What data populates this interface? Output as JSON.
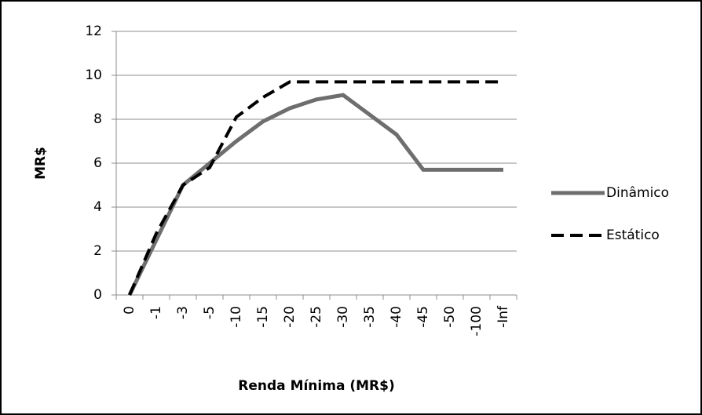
{
  "chart_data": {
    "type": "line",
    "x_label": "Renda Mínima (MR$)",
    "y_label": "MR$",
    "categories": [
      "0",
      "-1",
      "-3",
      "-5",
      "-10",
      "-15",
      "-20",
      "-25",
      "-30",
      "-35",
      "-40",
      "-45",
      "-50",
      "-100",
      "-Inf"
    ],
    "series": [
      {
        "name": "Dinâmico",
        "color": "#6e6e6e",
        "dashed": false,
        "values": [
          0,
          2.5,
          5.0,
          6.0,
          7.0,
          7.9,
          8.5,
          8.9,
          9.1,
          8.2,
          7.3,
          5.7,
          5.7,
          5.7,
          5.7
        ]
      },
      {
        "name": "Estático",
        "color": "#000000",
        "dashed": true,
        "values": [
          0,
          2.8,
          5.0,
          5.8,
          8.1,
          9.0,
          9.7,
          9.7,
          9.7,
          9.7,
          9.7,
          9.7,
          9.7,
          9.7,
          9.7
        ]
      }
    ],
    "ylim": [
      0,
      12
    ],
    "yticks": [
      0,
      2,
      4,
      6,
      8,
      10,
      12
    ],
    "grid": true,
    "legend": "right"
  }
}
